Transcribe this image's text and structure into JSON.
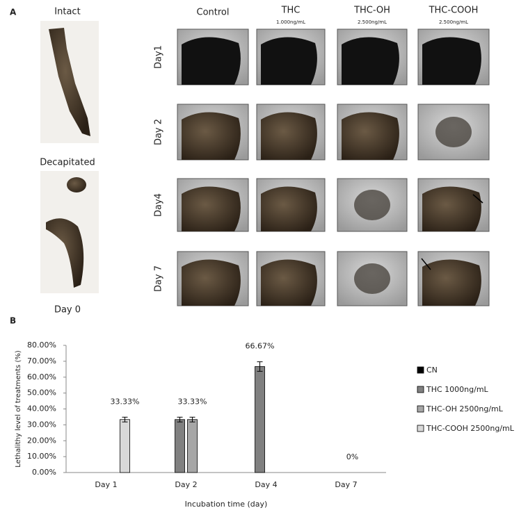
{
  "panel_a": {
    "label": "A",
    "intact": "Intact",
    "decapitated": "Decapitated",
    "day0": "Day 0",
    "columns": [
      {
        "name": "Control"
      },
      {
        "name": "THC",
        "dose": "1.000ng/mL"
      },
      {
        "name": "THC-OH",
        "dose": "2.500ng/mL"
      },
      {
        "name": "THC-COOH",
        "dose": "2.500ng/mL"
      }
    ],
    "rows": [
      "Day1",
      "Day 2",
      "Day4",
      "Day 7"
    ]
  },
  "panel_b": {
    "label": "B"
  },
  "chart_data": {
    "type": "bar",
    "ylabel": "Lethalithy level of treatments (%)",
    "xlabel": "Incubation time (day)",
    "categories": [
      "Day 1",
      "Day 2",
      "Day 4",
      "Day 7"
    ],
    "series": [
      {
        "name": "CN",
        "color": "#000000",
        "values": [
          0,
          0,
          0,
          0
        ],
        "errors": [
          0,
          0,
          0,
          0
        ],
        "value_labels": [
          null,
          null,
          null,
          null
        ]
      },
      {
        "name": "THC 1000ng/mL",
        "color": "#808080",
        "values": [
          0,
          33.33,
          66.67,
          0
        ],
        "errors": [
          0,
          1.5,
          3,
          0
        ],
        "value_labels": [
          null,
          null,
          "66.67%",
          null
        ]
      },
      {
        "name": "THC-OH 2500ng/mL",
        "color": "#a6a6a6",
        "values": [
          0,
          33.33,
          0,
          0
        ],
        "errors": [
          0,
          1.5,
          0,
          0
        ],
        "value_labels": [
          null,
          "33.33%",
          null,
          "0%"
        ]
      },
      {
        "name": "THC-COOH 2500ng/mL",
        "color": "#d9d9d9",
        "values": [
          33.33,
          0,
          0,
          0
        ],
        "errors": [
          1.5,
          0,
          0,
          0
        ],
        "value_labels": [
          "33.33%",
          null,
          null,
          null
        ]
      }
    ],
    "ylim": [
      0,
      80
    ],
    "yticks": [
      {
        "value": 0,
        "label": "0.00%"
      },
      {
        "value": 10,
        "label": "10.00%"
      },
      {
        "value": 20,
        "label": "20.00%"
      },
      {
        "value": 30,
        "label": "30.00%"
      },
      {
        "value": 40,
        "label": "40.00%"
      },
      {
        "value": 50,
        "label": "50.00%"
      },
      {
        "value": 60,
        "label": "60.00%"
      },
      {
        "value": 70,
        "label": "70.00%"
      },
      {
        "value": 80,
        "label": "80.00%"
      }
    ],
    "legend": "right"
  }
}
